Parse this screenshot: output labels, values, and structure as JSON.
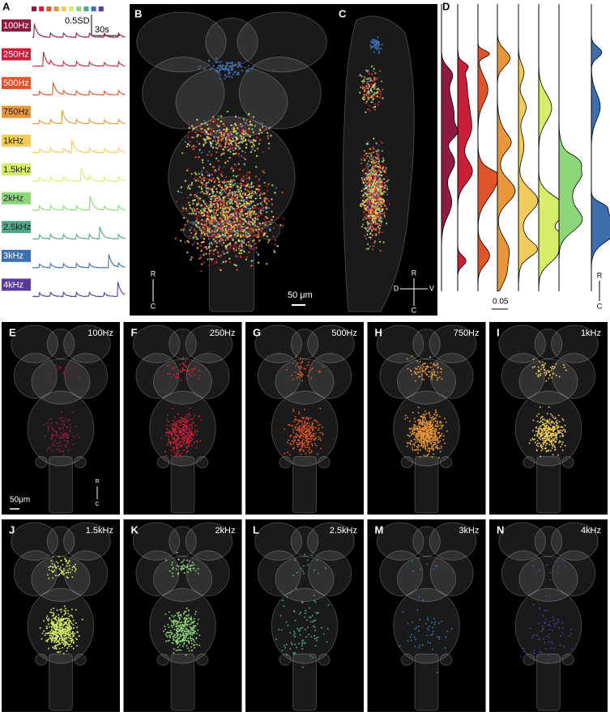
{
  "panel_a": {
    "letter": "A",
    "scale_amplitude": "0.5SD",
    "scale_time": "30s",
    "traces": [
      {
        "label": "100Hz",
        "color": "#8e1a42"
      },
      {
        "label": "250Hz",
        "color": "#c8203a"
      },
      {
        "label": "500Hz",
        "color": "#e0542a"
      },
      {
        "label": "750Hz",
        "color": "#e8963a"
      },
      {
        "label": "1kHz",
        "color": "#f0cc5c"
      },
      {
        "label": "1.5kHz",
        "color": "#d6ee6a"
      },
      {
        "label": "2kHz",
        "color": "#8ed67a"
      },
      {
        "label": "2.5kHz",
        "color": "#4fa88a"
      },
      {
        "label": "3kHz",
        "color": "#3d6fb0"
      },
      {
        "label": "4kHz",
        "color": "#5a3a96"
      }
    ]
  },
  "panel_b": {
    "letter": "B",
    "scale": "50 μm",
    "rostral": "R",
    "caudal": "C"
  },
  "panel_c": {
    "letter": "C",
    "rostral": "R",
    "caudal": "C",
    "dorsal": "D",
    "ventral": "V"
  },
  "panel_d": {
    "letter": "D",
    "scale": "0.05",
    "rostral": "R",
    "caudal": "C"
  },
  "maps": [
    {
      "letter": "E",
      "label": "100Hz"
    },
    {
      "letter": "F",
      "label": "250Hz"
    },
    {
      "letter": "G",
      "label": "500Hz"
    },
    {
      "letter": "H",
      "label": "750Hz"
    },
    {
      "letter": "I",
      "label": "1kHz"
    },
    {
      "letter": "J",
      "label": "1.5kHz"
    },
    {
      "letter": "K",
      "label": "2kHz"
    },
    {
      "letter": "L",
      "label": "2.5kHz"
    },
    {
      "letter": "M",
      "label": "3kHz"
    },
    {
      "letter": "N",
      "label": "4kHz"
    }
  ],
  "map_scale": "50μm",
  "map_rostral": "R",
  "map_caudal": "C"
}
